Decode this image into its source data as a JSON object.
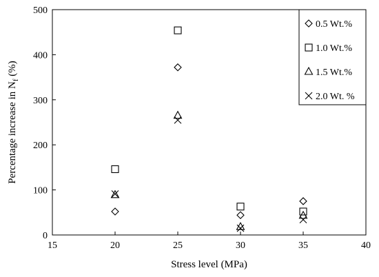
{
  "chart_data": {
    "type": "scatter",
    "title": "",
    "xlabel": "Stress level (MPa)",
    "ylabel_main": "Percentage increase in N",
    "ylabel_sub": "f",
    "ylabel_unit": " (%)",
    "xlim": [
      15,
      40
    ],
    "ylim": [
      0,
      500
    ],
    "xticks": [
      "15",
      "20",
      "25",
      "30",
      "35",
      "40"
    ],
    "yticks": [
      "0",
      "100",
      "200",
      "300",
      "400",
      "500"
    ],
    "grid": false,
    "legend_position": "top-right",
    "series": [
      {
        "name": "0.5 Wt.%",
        "marker": "diamond",
        "x": [
          20,
          25,
          30,
          35
        ],
        "y": [
          52,
          372,
          44,
          75
        ]
      },
      {
        "name": "1.0 Wt.%",
        "marker": "square",
        "x": [
          20,
          25,
          30,
          35
        ],
        "y": [
          146,
          454,
          63,
          52
        ]
      },
      {
        "name": "1.5 Wt.%",
        "marker": "triangle",
        "x": [
          20,
          25,
          30,
          35
        ],
        "y": [
          89,
          265,
          18,
          43
        ]
      },
      {
        "name": "2.0 Wt. %",
        "marker": "cross",
        "x": [
          20,
          25,
          30,
          35
        ],
        "y": [
          91,
          255,
          15,
          34
        ]
      }
    ]
  }
}
